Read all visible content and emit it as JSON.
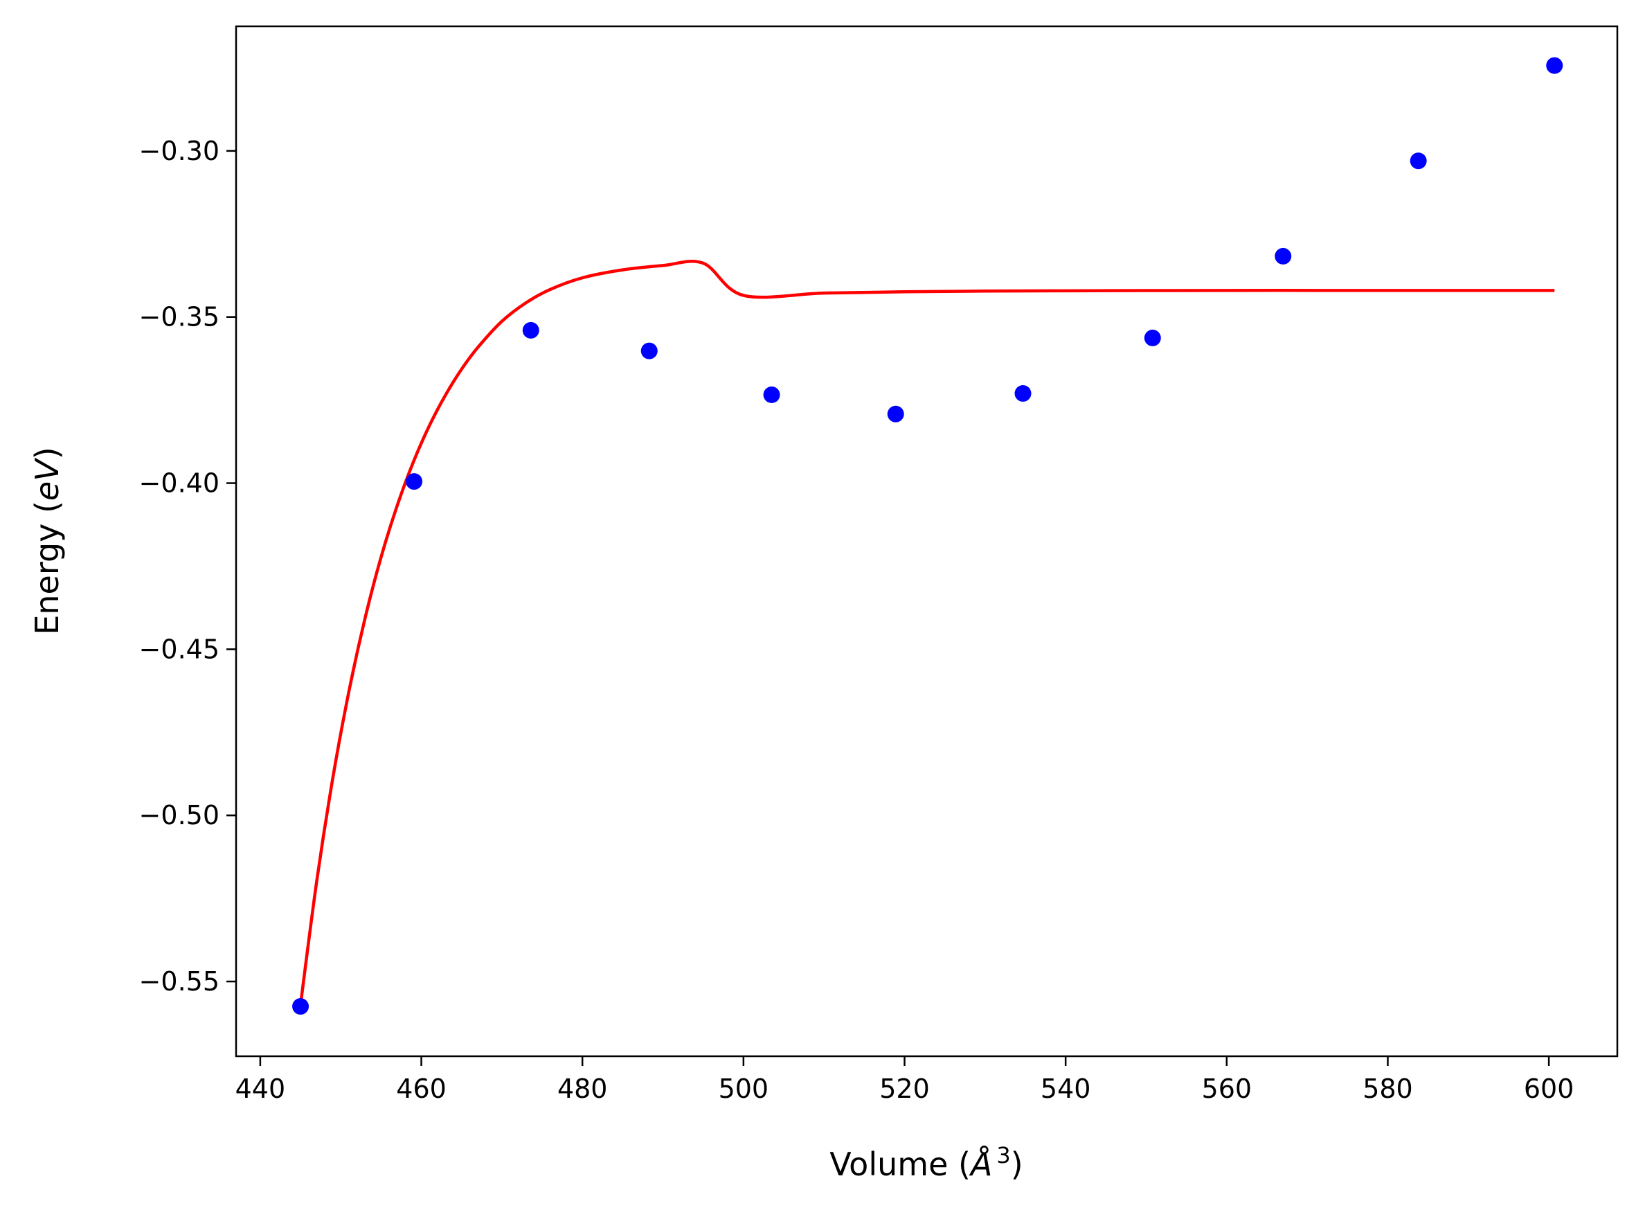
{
  "chart_data": {
    "type": "scatter",
    "xlabel": {
      "prefix": "Volume (",
      "symbol": "Å",
      "sup": "3",
      "suffix": ")"
    },
    "ylabel": {
      "prefix": "Energy (",
      "symbol": "eV",
      "suffix": ")"
    },
    "xlim": [
      437,
      608.5
    ],
    "ylim": [
      -0.5725,
      -0.2625
    ],
    "grid": false,
    "x_ticks": [
      440,
      460,
      480,
      500,
      520,
      540,
      560,
      580,
      600
    ],
    "x_tick_labels": [
      "440",
      "460",
      "480",
      "500",
      "520",
      "540",
      "560",
      "580",
      "600"
    ],
    "y_ticks": [
      -0.55,
      -0.5,
      -0.45,
      -0.4,
      -0.35,
      -0.3
    ],
    "y_tick_labels": [
      "−0.55",
      "−0.50",
      "−0.45",
      "−0.40",
      "−0.35",
      "−0.30"
    ],
    "series": [
      {
        "type": "scatter",
        "color": "#0000ff",
        "x": [
          445.0,
          459.1,
          473.6,
          488.3,
          503.5,
          518.9,
          534.7,
          550.8,
          567.0,
          583.8,
          600.7
        ],
        "y": [
          -0.5575,
          -0.3995,
          -0.354,
          -0.3602,
          -0.3734,
          -0.3792,
          -0.373,
          -0.3563,
          -0.3317,
          -0.303,
          -0.2743
        ]
      },
      {
        "type": "line",
        "color": "#ff0000",
        "x": [
          445.0,
          447.0,
          449.0,
          451.0,
          453.0,
          455.0,
          457.0,
          459.0,
          461.0,
          463.0,
          465.0,
          467.0,
          470.0,
          473.0,
          476.0,
          480.0,
          485.0,
          490.0,
          495.0,
          500.0,
          510.0,
          520.0,
          530.0,
          540.0,
          560.0,
          580.0,
          600.7
        ],
        "y": [
          -0.557,
          -0.52,
          -0.4889,
          -0.4628,
          -0.4408,
          -0.4223,
          -0.4068,
          -0.3937,
          -0.3827,
          -0.3735,
          -0.3657,
          -0.3592,
          -0.3513,
          -0.3457,
          -0.3417,
          -0.3382,
          -0.3358,
          -0.3345,
          -0.3338,
          -0.3435,
          -0.3428,
          -0.3424,
          -0.3422,
          -0.3421,
          -0.342,
          -0.342,
          -0.342
        ]
      }
    ]
  }
}
